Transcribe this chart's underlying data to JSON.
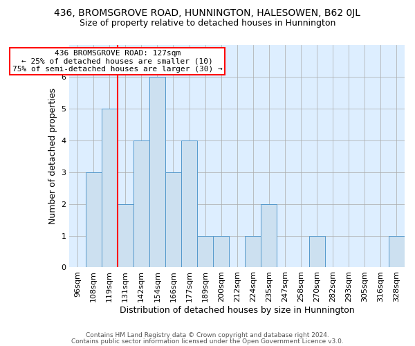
{
  "title_line1": "436, BROMSGROVE ROAD, HUNNINGTON, HALESOWEN, B62 0JL",
  "title_line2": "Size of property relative to detached houses in Hunnington",
  "xlabel": "Distribution of detached houses by size in Hunnington",
  "ylabel": "Number of detached properties",
  "footer_line1": "Contains HM Land Registry data © Crown copyright and database right 2024.",
  "footer_line2": "Contains public sector information licensed under the Open Government Licence v3.0.",
  "categories": [
    "96sqm",
    "108sqm",
    "119sqm",
    "131sqm",
    "142sqm",
    "154sqm",
    "166sqm",
    "177sqm",
    "189sqm",
    "200sqm",
    "212sqm",
    "224sqm",
    "235sqm",
    "247sqm",
    "258sqm",
    "270sqm",
    "282sqm",
    "293sqm",
    "305sqm",
    "316sqm",
    "328sqm"
  ],
  "values": [
    0,
    3,
    5,
    2,
    4,
    6,
    3,
    4,
    1,
    1,
    0,
    1,
    2,
    0,
    0,
    1,
    0,
    0,
    0,
    0,
    1
  ],
  "bar_color": "#cce0f0",
  "bar_edge_color": "#5599cc",
  "background_color": "#ddeeff",
  "annotation_text": "436 BROMSGROVE ROAD: 127sqm\n← 25% of detached houses are smaller (10)\n75% of semi-detached houses are larger (30) →",
  "annotation_box_color": "white",
  "annotation_box_edge": "red",
  "vline_color": "red",
  "vline_x": 2.5,
  "ylim": [
    0,
    7
  ],
  "yticks": [
    0,
    1,
    2,
    3,
    4,
    5,
    6
  ],
  "title1_fontsize": 10,
  "title2_fontsize": 9,
  "tick_fontsize": 8,
  "ylabel_fontsize": 9,
  "xlabel_fontsize": 9,
  "footer_fontsize": 6.5,
  "annot_fontsize": 8
}
